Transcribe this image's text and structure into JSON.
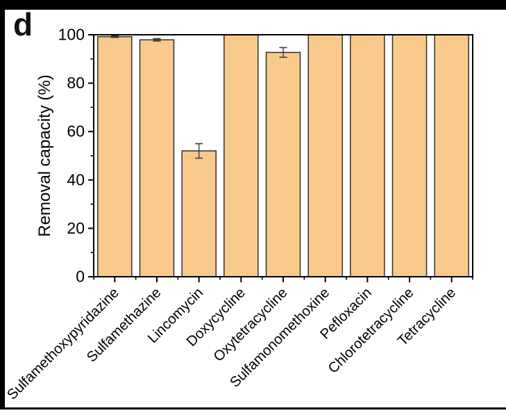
{
  "panel_label": "d",
  "chart_data": {
    "type": "bar",
    "title": "",
    "xlabel": "",
    "ylabel": "Removal capacity (%)",
    "ylim": [
      0,
      100
    ],
    "yticks_major": [
      0,
      20,
      40,
      60,
      80,
      100
    ],
    "yticks_minor": [
      10,
      30,
      50,
      70,
      90
    ],
    "grid": false,
    "legend": null,
    "categories": [
      "Sulfamethoxypyridazine",
      "Sulfamethazine",
      "Lincomycin",
      "Doxycycline",
      "Oxytetracycline",
      "Sulfamonomethoxine",
      "Pefloxacin",
      "Chlorotetracycline",
      "Tetracycline"
    ],
    "values": [
      99.2,
      97.9,
      52,
      100,
      92.7,
      100,
      100,
      100,
      100
    ],
    "errors": [
      0.3,
      0.5,
      3,
      0,
      2,
      0,
      0,
      0,
      0
    ],
    "bar_color": "#FACA8C",
    "bar_border_color": "#2e2e2e",
    "error_bar_color": "#3a3a3a",
    "frame_color": "#000000",
    "background_color": "#ffffff",
    "outer_border_color": "#000000"
  }
}
